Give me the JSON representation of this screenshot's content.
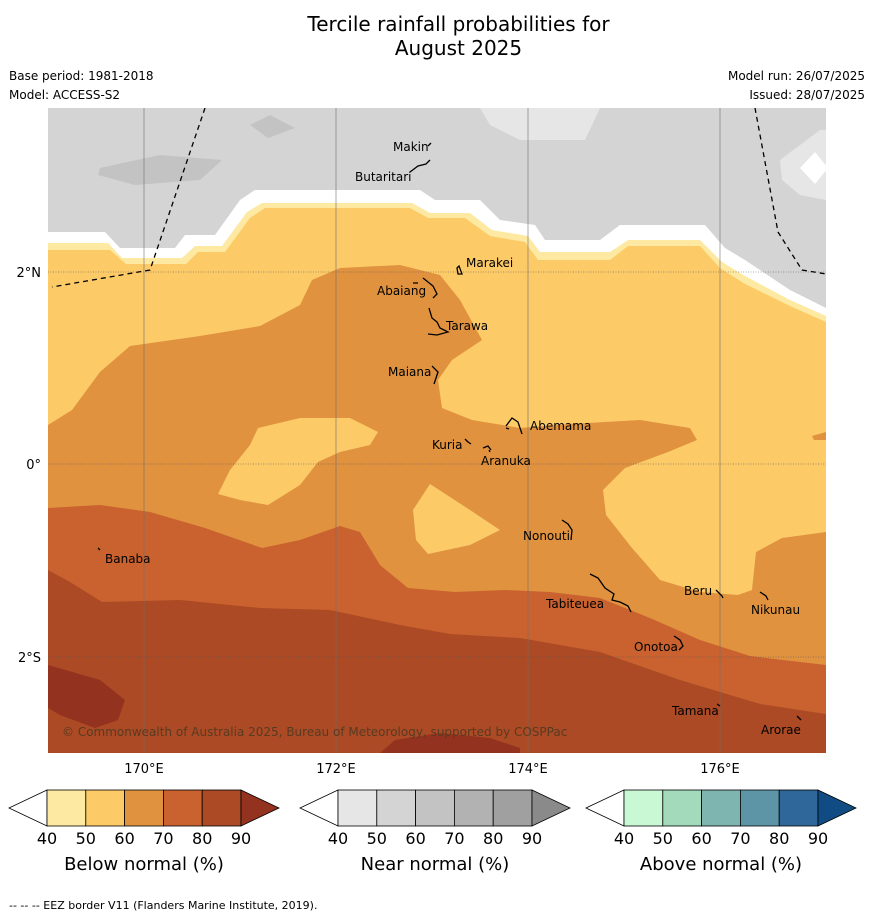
{
  "title_line1": "Tercile rainfall probabilities for",
  "title_line2": "August 2025",
  "meta": {
    "base_period": "Base period: 1981-2018",
    "model": "Model: ACCESS-S2",
    "model_run": "Model run: 26/07/2025",
    "issued": "Issued: 28/07/2025"
  },
  "map": {
    "lat_labels": [
      "2°N",
      "0°",
      "2°S"
    ],
    "lon_labels": [
      "170°E",
      "172°E",
      "174°E",
      "176°E"
    ],
    "copyright": "© Commonwealth of Australia 2025, Bureau of Meteorology, supported by COSPPac",
    "places": {
      "makin": "Makin",
      "butaritari": "Butaritari",
      "marakei": "Marakei",
      "abaiang": "Abaiang",
      "tarawa": "Tarawa",
      "maiana": "Maiana",
      "abemama": "Abemama",
      "kuria": "Kuria",
      "aranuka": "Aranuka",
      "nonouti": "Nonouti",
      "banaba": "Banaba",
      "beru": "Beru",
      "tabiteuea": "Tabiteuea",
      "nikunau": "Nikunau",
      "onotoa": "Onotoa",
      "tamana": "Tamana",
      "arorae": "Arorae"
    }
  },
  "colorbars": [
    {
      "title": "Below normal (%)",
      "ticks": [
        "40",
        "50",
        "60",
        "70",
        "80",
        "90"
      ],
      "colors": [
        "#ffffff",
        "#fde9a1",
        "#fdca68",
        "#e0923f",
        "#c9622f",
        "#ab4a24",
        "#943220"
      ]
    },
    {
      "title": "Near normal (%)",
      "ticks": [
        "40",
        "50",
        "60",
        "70",
        "80",
        "90"
      ],
      "colors": [
        "#ffffff",
        "#e6e6e6",
        "#d4d4d4",
        "#c3c3c3",
        "#b2b2b2",
        "#a0a0a0",
        "#8a8a8a"
      ]
    },
    {
      "title": "Above normal (%)",
      "ticks": [
        "40",
        "50",
        "60",
        "70",
        "80",
        "90"
      ],
      "colors": [
        "#ffffff",
        "#c8f8d4",
        "#a4dabc",
        "#7fb5b1",
        "#5e95a6",
        "#30679b",
        "#104c83"
      ]
    }
  ],
  "footnote": "-- -- -- EEZ border V11 (Flanders Marine Institute, 2019)."
}
